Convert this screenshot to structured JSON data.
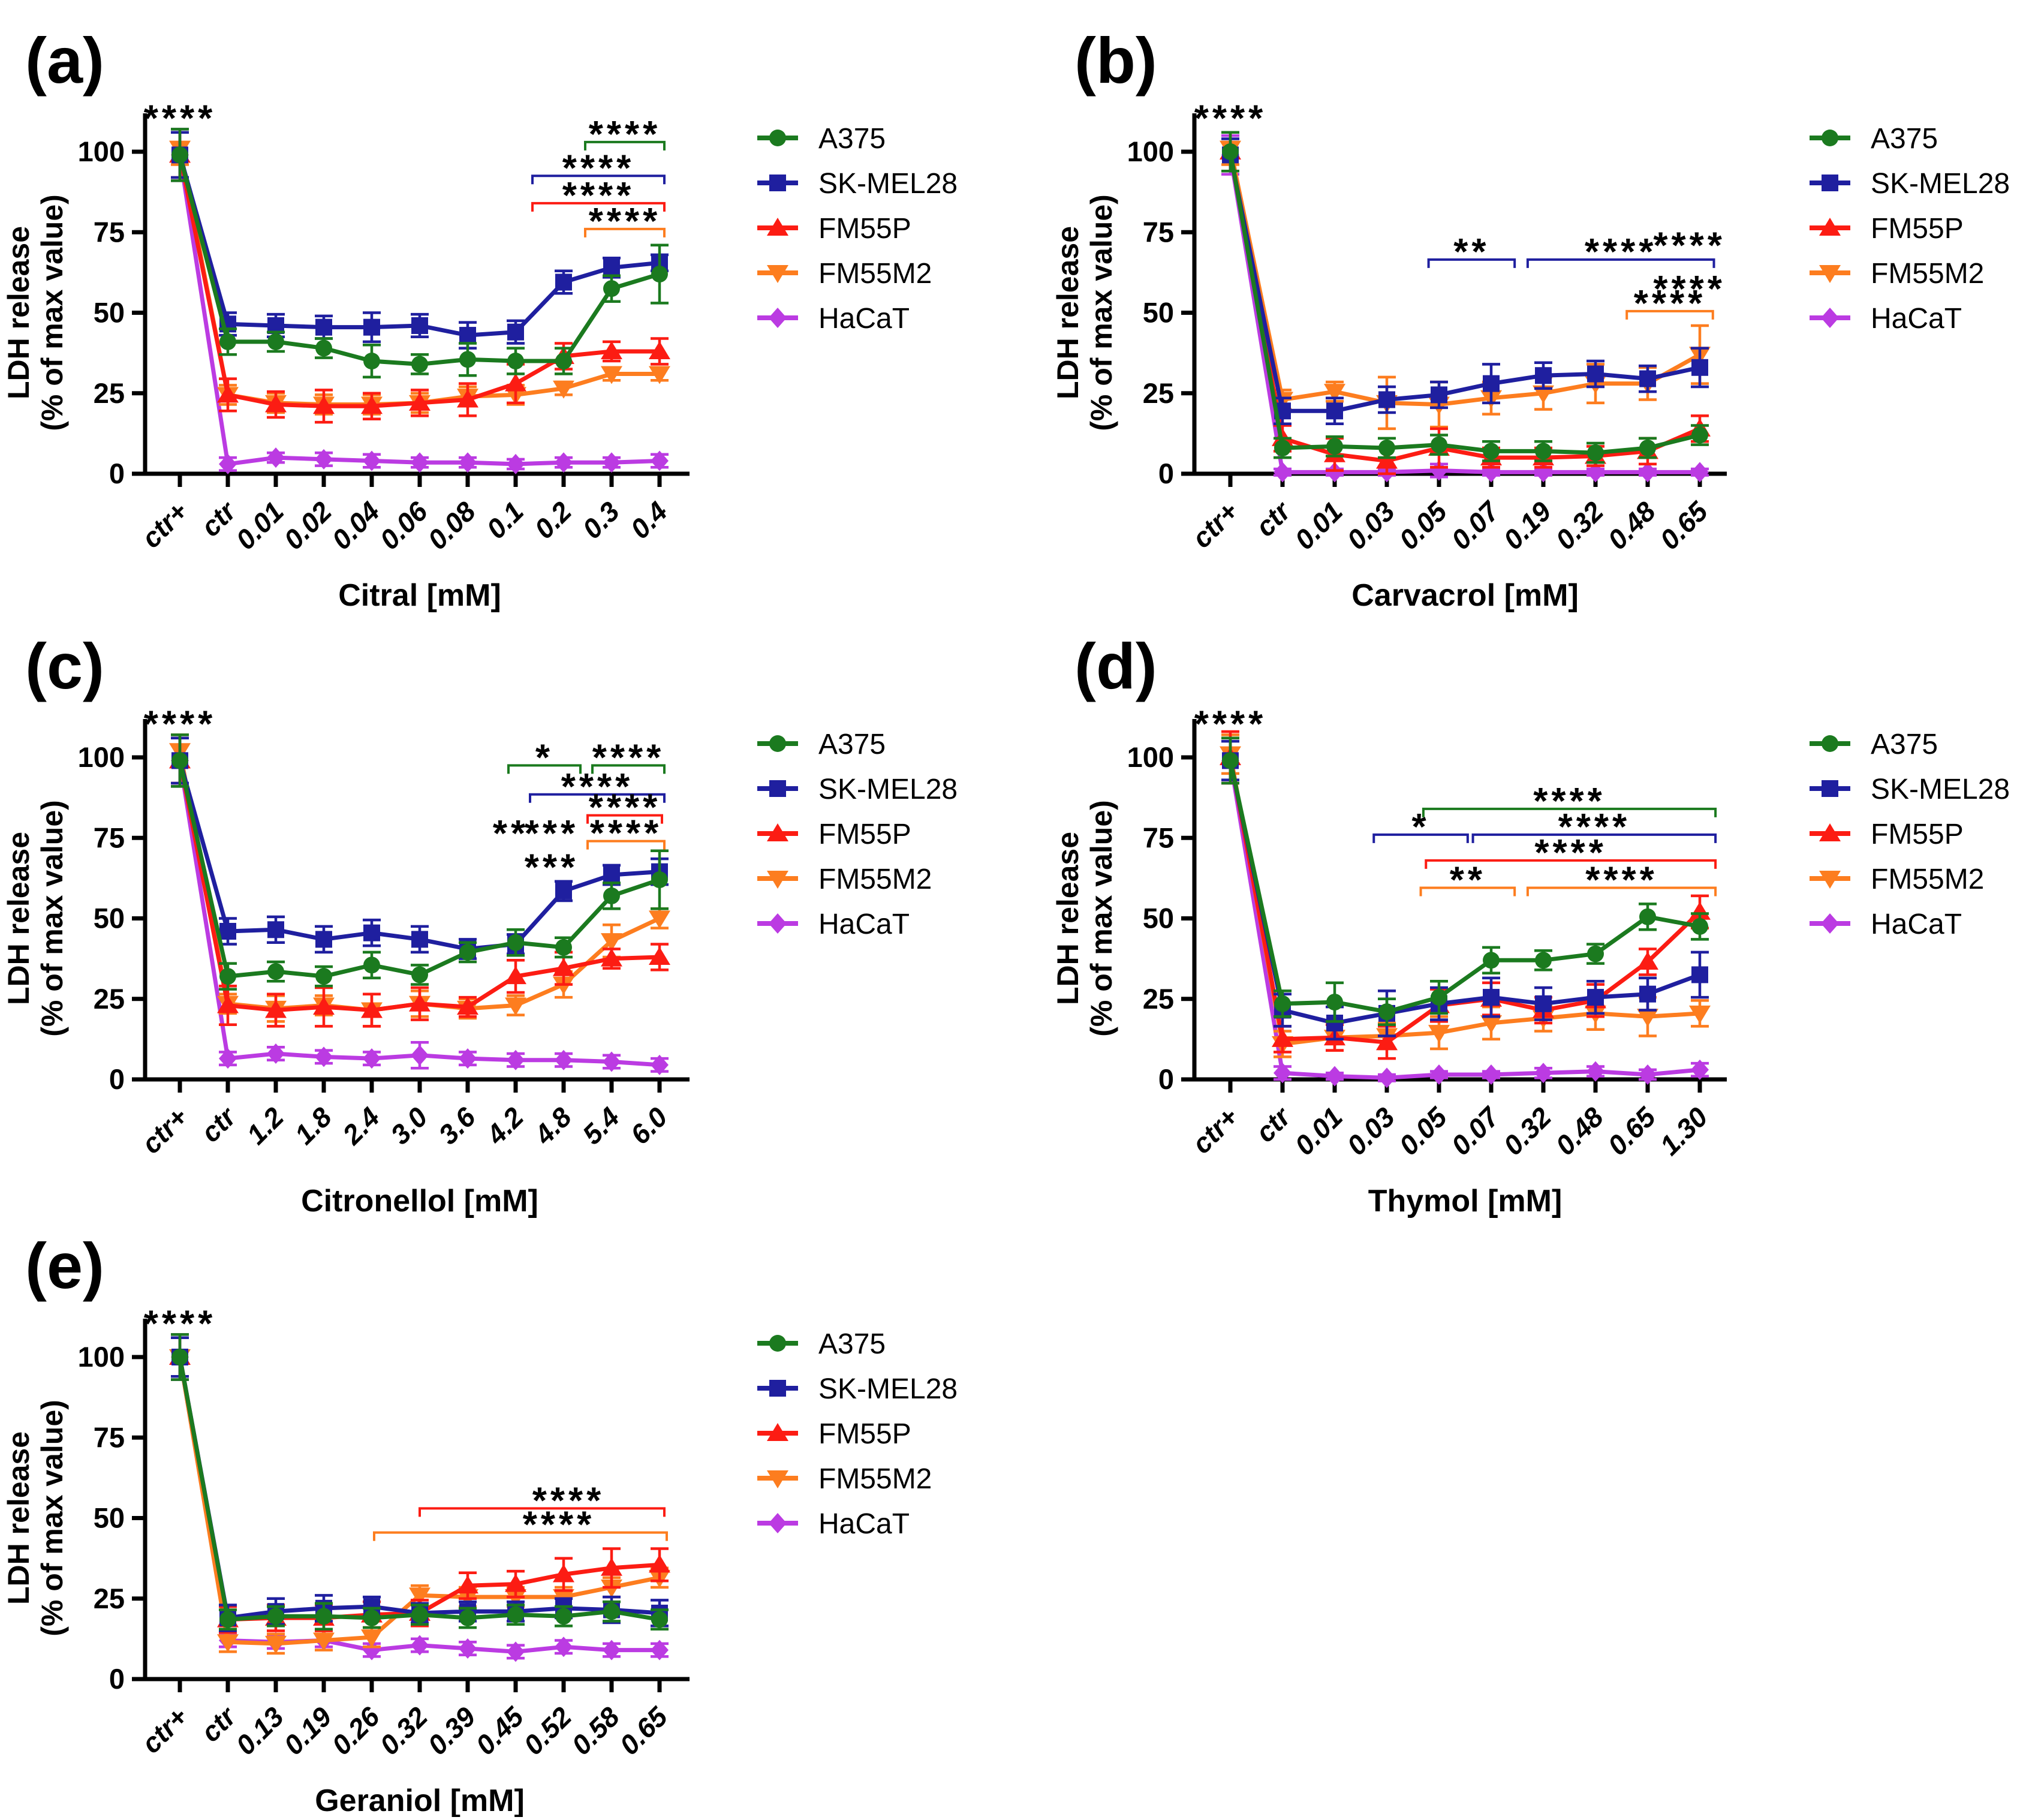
{
  "figure": {
    "background": "#ffffff",
    "ylabel_line1": "LDH release",
    "ylabel_line2": "(% of max value)",
    "y_ticks": [
      0,
      25,
      50,
      75,
      100
    ],
    "ylim": [
      0,
      112
    ],
    "legend_labels": [
      "A375",
      "SK-MEL28",
      "FM55P",
      "FM55M2",
      "HaCaT"
    ],
    "series_styles": {
      "A375": {
        "color": "#1b7a1f",
        "marker": "circle"
      },
      "SK-MEL28": {
        "color": "#1f1f9f",
        "marker": "square"
      },
      "FM55P": {
        "color": "#fc1c13",
        "marker": "triangle-up"
      },
      "FM55M2": {
        "color": "#fd7d1f",
        "marker": "triangle-down"
      },
      "HaCaT": {
        "color": "#bb3be2",
        "marker": "diamond"
      }
    }
  },
  "chart_data": [
    {
      "panel": "(a)",
      "type": "line",
      "xlabel": "Citral [mM]",
      "ylabel": "LDH release (% of max value)",
      "categories": [
        "ctr+",
        "ctr",
        "0.01",
        "0.02",
        "0.04",
        "0.06",
        "0.08",
        "0.1",
        "0.2",
        "0.3",
        "0.4"
      ],
      "series": [
        {
          "name": "A375",
          "values": [
            99,
            41,
            41,
            39,
            35,
            34,
            35.5,
            35,
            35,
            57.5,
            62
          ],
          "errors": [
            8,
            4,
            3,
            3,
            5,
            3,
            5,
            4,
            4,
            4,
            9
          ]
        },
        {
          "name": "SK-MEL28",
          "values": [
            99,
            46.5,
            46,
            45.5,
            45.5,
            46,
            43,
            44,
            59.5,
            64,
            65.5
          ],
          "errors": [
            7,
            3.5,
            3.5,
            3.5,
            4.5,
            3.5,
            4,
            3.5,
            3.5,
            3,
            2.5
          ]
        },
        {
          "name": "FM55P",
          "values": [
            99,
            24.5,
            21.5,
            21,
            21,
            22,
            23,
            28,
            36.5,
            38,
            38
          ],
          "errors": [
            7,
            5,
            4,
            5,
            4,
            4,
            5,
            6,
            4,
            3,
            4
          ]
        },
        {
          "name": "FM55M2",
          "values": [
            101,
            24.5,
            22,
            21.5,
            21.5,
            22,
            24,
            24.5,
            26.5,
            31,
            31
          ],
          "errors": [
            5,
            3,
            3,
            3,
            3,
            3,
            3,
            3,
            2,
            2,
            2
          ]
        },
        {
          "name": "HaCaT",
          "values": [
            99,
            3,
            5,
            4.5,
            4,
            3.5,
            3.5,
            3,
            3.5,
            3.5,
            4
          ],
          "errors": [
            8,
            2,
            1.5,
            2,
            2,
            1.5,
            1.5,
            1.5,
            1.5,
            1.5,
            2
          ]
        }
      ],
      "significance": [
        {
          "type": "label",
          "color": "#000000",
          "text": "****",
          "x": 0,
          "y": 112
        },
        {
          "type": "bracket",
          "color": "#1b7a1f",
          "text": "****",
          "x1": 8.45,
          "x2": 10.1,
          "y": 103
        },
        {
          "type": "bracket",
          "color": "#1f1f9f",
          "text": "****",
          "x1": 7.35,
          "x2": 10.1,
          "y": 92.5
        },
        {
          "type": "bracket",
          "color": "#fc1c13",
          "text": "****",
          "x1": 7.35,
          "x2": 10.1,
          "y": 84
        },
        {
          "type": "bracket",
          "color": "#fd7d1f",
          "text": "****",
          "x1": 8.45,
          "x2": 10.1,
          "y": 76
        }
      ],
      "grid": false,
      "legend_position": "right",
      "row": 0,
      "col": 0
    },
    {
      "panel": "(b)",
      "type": "line",
      "xlabel": "Carvacrol [mM]",
      "ylabel": "LDH release (% of max value)",
      "categories": [
        "ctr+",
        "ctr",
        "0.01",
        "0.03",
        "0.05",
        "0.07",
        "0.19",
        "0.32",
        "0.48",
        "0.65"
      ],
      "series": [
        {
          "name": "A375",
          "values": [
            100,
            8,
            8.5,
            8,
            9,
            7,
            7,
            6.5,
            8,
            12
          ],
          "errors": [
            6,
            3,
            3,
            3,
            3,
            3,
            3,
            3,
            3,
            3
          ]
        },
        {
          "name": "SK-MEL28",
          "values": [
            99,
            19.5,
            19.5,
            23,
            24.5,
            28,
            30.5,
            31,
            29.5,
            33
          ],
          "errors": [
            5,
            4,
            4,
            4,
            4,
            6,
            4,
            4,
            4,
            6
          ]
        },
        {
          "name": "FM55P",
          "values": [
            100,
            11,
            6,
            4,
            8,
            5,
            5,
            5.5,
            7,
            14
          ],
          "errors": [
            6,
            4,
            5,
            4,
            6,
            3,
            3,
            3,
            4,
            4
          ]
        },
        {
          "name": "FM55M2",
          "values": [
            101,
            23,
            25.5,
            22,
            21.5,
            23.5,
            25,
            28,
            28,
            37
          ],
          "errors": [
            5,
            3,
            3,
            8,
            7,
            5,
            5,
            6,
            5,
            9
          ]
        },
        {
          "name": "HaCaT",
          "values": [
            99,
            0.5,
            0.5,
            0.5,
            1,
            0.5,
            0.5,
            0.5,
            0.5,
            0.5
          ],
          "errors": [
            6,
            1,
            1,
            1,
            2,
            1,
            1,
            1,
            1,
            1
          ]
        }
      ],
      "significance": [
        {
          "type": "label",
          "color": "#000000",
          "text": "****",
          "x": 0,
          "y": 112
        },
        {
          "type": "label",
          "color": "#1b7a1f",
          "text": "****",
          "x": 8.8,
          "y": 72.5
        },
        {
          "type": "bracket",
          "color": "#1f1f9f",
          "text": "**",
          "x1": 3.8,
          "x2": 5.45,
          "y": 66.5
        },
        {
          "type": "bracket",
          "color": "#1f1f9f",
          "text": "****",
          "x1": 5.7,
          "x2": 9.27,
          "y": 66.5
        },
        {
          "type": "label",
          "color": "#fc1c13",
          "text": "****",
          "x": 8.8,
          "y": 59
        },
        {
          "type": "bracket",
          "color": "#fd7d1f",
          "text": "****",
          "x1": 7.6,
          "x2": 9.25,
          "y": 50.5
        }
      ],
      "grid": false,
      "legend_position": "right",
      "row": 0,
      "col": 1
    },
    {
      "panel": "(c)",
      "type": "line",
      "xlabel": "Citronellol [mM]",
      "ylabel": "LDH release (% of max value)",
      "categories": [
        "ctr+",
        "ctr",
        "1.2",
        "1.8",
        "2.4",
        "3.0",
        "3.6",
        "4.2",
        "4.8",
        "5.4",
        "6.0"
      ],
      "series": [
        {
          "name": "A375",
          "values": [
            99,
            32,
            33.5,
            32,
            35.5,
            32.5,
            39.5,
            42.5,
            41,
            57,
            62
          ],
          "errors": [
            8,
            4,
            3,
            3,
            4,
            3,
            3,
            4,
            3,
            4,
            9
          ]
        },
        {
          "name": "SK-MEL28",
          "values": [
            99,
            46,
            46.5,
            43.5,
            45.5,
            43.5,
            40.5,
            42,
            58.5,
            63.5,
            64.5
          ],
          "errors": [
            7,
            4,
            4,
            4,
            4,
            4,
            3,
            3,
            3,
            3,
            4
          ]
        },
        {
          "name": "FM55P",
          "values": [
            99,
            23,
            21.5,
            22.5,
            21.5,
            23.5,
            22.5,
            32,
            34.5,
            37.5,
            38
          ],
          "errors": [
            7,
            6,
            5,
            6,
            5,
            5,
            3,
            5,
            5,
            3,
            4
          ]
        },
        {
          "name": "FM55M2",
          "values": [
            102,
            23.5,
            22,
            23,
            21.5,
            23.5,
            22,
            23,
            29.5,
            43,
            50
          ],
          "errors": [
            5,
            3,
            4,
            3,
            5,
            4,
            3,
            3,
            4,
            5,
            3
          ]
        },
        {
          "name": "HaCaT",
          "values": [
            99,
            6.5,
            8,
            7,
            6.5,
            7.5,
            6.5,
            6,
            6,
            5.5,
            4.5
          ],
          "errors": [
            8,
            2,
            2,
            2,
            2,
            4,
            2,
            2,
            2,
            2,
            2
          ]
        }
      ],
      "significance": [
        {
          "type": "label",
          "color": "#000000",
          "text": "****",
          "x": 0,
          "y": 112
        },
        {
          "type": "bracket",
          "color": "#1b7a1f",
          "text": "*",
          "x1": 6.85,
          "x2": 8.35,
          "y": 97.5
        },
        {
          "type": "bracket",
          "color": "#1b7a1f",
          "text": "****",
          "x1": 8.6,
          "x2": 10.1,
          "y": 97.5
        },
        {
          "type": "bracket",
          "color": "#1f1f9f",
          "text": "****",
          "x1": 7.3,
          "x2": 10.1,
          "y": 88.5
        },
        {
          "type": "bracket",
          "color": "#fc1c13",
          "text": "****",
          "x1": 8.5,
          "x2": 10.05,
          "y": 82
        },
        {
          "type": "label",
          "color": "#fc1c13",
          "text": "**",
          "x": 6.9,
          "y": 78
        },
        {
          "type": "label",
          "color": "#fc1c13",
          "text": "***",
          "x": 7.75,
          "y": 78
        },
        {
          "type": "bracket",
          "color": "#fd7d1f",
          "text": "****",
          "x1": 8.5,
          "x2": 10.1,
          "y": 74
        },
        {
          "type": "label",
          "color": "#fd7d1f",
          "text": "***",
          "x": 7.75,
          "y": 67.5
        }
      ],
      "grid": false,
      "legend_position": "right",
      "row": 1,
      "col": 0
    },
    {
      "panel": "(d)",
      "type": "line",
      "xlabel": "Thymol [mM]",
      "ylabel": "LDH release (% of max value)",
      "categories": [
        "ctr+",
        "ctr",
        "0.01",
        "0.03",
        "0.05",
        "0.07",
        "0.32",
        "0.48",
        "0.65",
        "1.30"
      ],
      "series": [
        {
          "name": "A375",
          "values": [
            99,
            23.5,
            24,
            21,
            25.5,
            37,
            37,
            39,
            50.5,
            47.5
          ],
          "errors": [
            7,
            4,
            6,
            4,
            5,
            4,
            3,
            3,
            4,
            4
          ]
        },
        {
          "name": "SK-MEL28",
          "values": [
            99,
            21.5,
            17.5,
            20.5,
            23.5,
            25.5,
            23.5,
            25.5,
            26.5,
            32.5
          ],
          "errors": [
            6,
            5,
            5,
            7,
            5,
            6,
            5,
            5,
            5,
            7
          ]
        },
        {
          "name": "FM55P",
          "values": [
            100,
            12.5,
            13,
            11.5,
            23,
            25,
            21.5,
            24.5,
            36.5,
            52
          ],
          "errors": [
            8,
            4,
            4,
            5,
            5,
            5,
            4,
            5,
            4,
            5
          ]
        },
        {
          "name": "FM55M2",
          "values": [
            101,
            11,
            13,
            13.5,
            14.5,
            17.5,
            19,
            20.5,
            19.5,
            20.5
          ],
          "errors": [
            6,
            4,
            4,
            4,
            5,
            5,
            4,
            5,
            6,
            4
          ]
        },
        {
          "name": "HaCaT",
          "values": [
            99,
            2,
            1,
            0.5,
            1.5,
            1.5,
            2,
            2.5,
            1.5,
            3
          ],
          "errors": [
            7,
            2,
            1,
            1,
            1,
            1,
            1.5,
            1.5,
            1.5,
            2
          ]
        }
      ],
      "significance": [
        {
          "type": "label",
          "color": "#000000",
          "text": "****",
          "x": 0,
          "y": 112
        },
        {
          "type": "bracket",
          "color": "#1b7a1f",
          "text": "****",
          "x1": 3.7,
          "x2": 9.3,
          "y": 84
        },
        {
          "type": "bracket",
          "color": "#1f1f9f",
          "text": "*",
          "x1": 2.75,
          "x2": 4.55,
          "y": 76
        },
        {
          "type": "bracket",
          "color": "#1f1f9f",
          "text": "****",
          "x1": 4.65,
          "x2": 9.3,
          "y": 76
        },
        {
          "type": "bracket",
          "color": "#fc1c13",
          "text": "****",
          "x1": 3.75,
          "x2": 9.3,
          "y": 68
        },
        {
          "type": "bracket",
          "color": "#fd7d1f",
          "text": "**",
          "x1": 3.65,
          "x2": 5.45,
          "y": 59.5
        },
        {
          "type": "bracket",
          "color": "#fd7d1f",
          "text": "****",
          "x1": 5.7,
          "x2": 9.3,
          "y": 59.5
        }
      ],
      "grid": false,
      "legend_position": "right",
      "row": 1,
      "col": 1
    },
    {
      "panel": "(e)",
      "type": "line",
      "xlabel": "Geraniol [mM]",
      "ylabel": "LDH release (% of max value)",
      "categories": [
        "ctr+",
        "ctr",
        "0.13",
        "0.19",
        "0.26",
        "0.32",
        "0.39",
        "0.45",
        "0.52",
        "0.58",
        "0.65"
      ],
      "series": [
        {
          "name": "A375",
          "values": [
            100,
            18.5,
            19.5,
            19.5,
            19,
            20,
            19,
            20,
            19.5,
            21,
            18.5
          ],
          "errors": [
            7,
            3,
            3,
            4,
            3,
            3,
            3,
            3,
            3,
            3,
            3
          ]
        },
        {
          "name": "SK-MEL28",
          "values": [
            100,
            19,
            21,
            22,
            22.5,
            20.5,
            21,
            21,
            22,
            21.5,
            20.5
          ],
          "errors": [
            6,
            4,
            4,
            4,
            3,
            3,
            3,
            3,
            3,
            4,
            4
          ]
        },
        {
          "name": "FM55P",
          "values": [
            100,
            18.5,
            19,
            19,
            20,
            20.5,
            29,
            29.5,
            32.5,
            34.5,
            35.5
          ],
          "errors": [
            6,
            4,
            4,
            4,
            4,
            4,
            4,
            4,
            5,
            6,
            5
          ]
        },
        {
          "name": "FM55M2",
          "values": [
            100,
            11.5,
            11,
            12,
            13,
            26,
            25.5,
            25.5,
            25.5,
            28.5,
            31.5
          ],
          "errors": [
            6,
            3,
            3,
            3,
            3,
            3,
            3,
            3,
            3,
            3,
            3
          ]
        },
        {
          "name": "HaCaT",
          "values": [
            100,
            12,
            11.5,
            12,
            9,
            10.5,
            9.5,
            8.5,
            10,
            9,
            9
          ],
          "errors": [
            7,
            2,
            2,
            2,
            2,
            2,
            2,
            2,
            2,
            2,
            2
          ]
        }
      ],
      "significance": [
        {
          "type": "label",
          "color": "#000000",
          "text": "****",
          "x": 0,
          "y": 112
        },
        {
          "type": "bracket",
          "color": "#fc1c13",
          "text": "****",
          "x1": 5.0,
          "x2": 10.1,
          "y": 53,
          "tx": 8.1
        },
        {
          "type": "bracket",
          "color": "#fd7d1f",
          "text": "****",
          "x1": 4.05,
          "x2": 10.15,
          "y": 45.5,
          "tx": 7.9
        }
      ],
      "grid": false,
      "legend_position": "right",
      "row": 2,
      "col": 0
    }
  ]
}
